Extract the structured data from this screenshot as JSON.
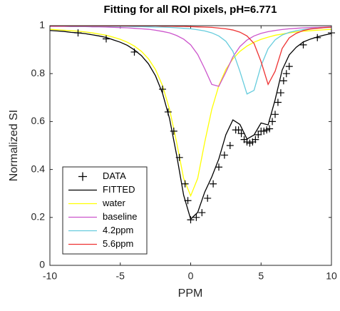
{
  "chart_data": {
    "type": "line",
    "title": "Fitting for all ROI pixels, pH=6.771",
    "xlabel": "PPM",
    "ylabel": "Normalized SI",
    "xlim": [
      -10,
      10
    ],
    "ylim": [
      0,
      1
    ],
    "xticks": [
      -10,
      -5,
      0,
      5,
      10
    ],
    "yticks": [
      0,
      0.2,
      0.4,
      0.6,
      0.8,
      1
    ],
    "legend_location": "southwest",
    "x": [
      -10,
      -9.5,
      -9,
      -8.5,
      -8,
      -7.5,
      -7,
      -6.5,
      -6,
      -5.5,
      -5,
      -4.5,
      -4,
      -3.5,
      -3,
      -2.5,
      -2,
      -1.5,
      -1,
      -0.5,
      0,
      0.5,
      1,
      1.5,
      2,
      2.5,
      3,
      3.5,
      4,
      4.5,
      5,
      5.5,
      6,
      6.5,
      7,
      7.5,
      8,
      8.5,
      9,
      9.5,
      10
    ],
    "series": [
      {
        "name": "DATA",
        "color": "#000000",
        "marker": "+",
        "line": false,
        "x": [
          -8,
          -6,
          -4,
          -2,
          -1.6,
          -1.2,
          -0.8,
          -0.4,
          -0.2,
          0,
          0.4,
          0.8,
          1.2,
          1.6,
          2,
          2.4,
          2.8,
          3.2,
          3.4,
          3.6,
          3.8,
          4,
          4.2,
          4.4,
          4.6,
          4.8,
          5,
          5.2,
          5.4,
          5.6,
          5.8,
          6,
          6.2,
          6.4,
          6.6,
          6.8,
          7,
          8,
          9,
          10
        ],
        "values": [
          0.97,
          0.945,
          0.89,
          0.735,
          0.64,
          0.56,
          0.45,
          0.34,
          0.27,
          0.19,
          0.2,
          0.22,
          0.28,
          0.34,
          0.41,
          0.46,
          0.5,
          0.565,
          0.565,
          0.55,
          0.525,
          0.515,
          0.51,
          0.515,
          0.525,
          0.545,
          0.56,
          0.56,
          0.565,
          0.57,
          0.6,
          0.63,
          0.68,
          0.72,
          0.77,
          0.8,
          0.83,
          0.92,
          0.95,
          0.97
        ]
      },
      {
        "name": "FITTED",
        "color": "#000000",
        "values": [
          0.98,
          0.978,
          0.976,
          0.972,
          0.97,
          0.967,
          0.962,
          0.957,
          0.951,
          0.941,
          0.931,
          0.918,
          0.899,
          0.875,
          0.841,
          0.791,
          0.718,
          0.612,
          0.461,
          0.293,
          0.193,
          0.221,
          0.306,
          0.369,
          0.444,
          0.545,
          0.607,
          0.588,
          0.527,
          0.544,
          0.594,
          0.586,
          0.691,
          0.815,
          0.878,
          0.91,
          0.932,
          0.944,
          0.953,
          0.961,
          0.967
        ]
      },
      {
        "name": "water",
        "color": "#ffff00",
        "values": [
          0.985,
          0.983,
          0.981,
          0.979,
          0.977,
          0.974,
          0.97,
          0.965,
          0.96,
          0.952,
          0.943,
          0.931,
          0.915,
          0.893,
          0.862,
          0.817,
          0.75,
          0.651,
          0.514,
          0.363,
          0.29,
          0.363,
          0.514,
          0.651,
          0.75,
          0.817,
          0.862,
          0.893,
          0.915,
          0.931,
          0.943,
          0.952,
          0.96,
          0.965,
          0.97,
          0.974,
          0.977,
          0.979,
          0.981,
          0.983,
          0.985
        ]
      },
      {
        "name": "baseline",
        "color": "#cc55cc",
        "values": [
          0.997,
          0.997,
          0.997,
          0.996,
          0.996,
          0.996,
          0.995,
          0.995,
          0.994,
          0.993,
          0.992,
          0.991,
          0.989,
          0.987,
          0.985,
          0.981,
          0.976,
          0.97,
          0.959,
          0.944,
          0.92,
          0.88,
          0.82,
          0.755,
          0.747,
          0.806,
          0.87,
          0.913,
          0.94,
          0.957,
          0.968,
          0.975,
          0.98,
          0.984,
          0.987,
          0.989,
          0.991,
          0.992,
          0.993,
          0.994,
          0.995
        ]
      },
      {
        "name": "4.2ppm",
        "color": "#66ccdd",
        "values": [
          0.999,
          0.999,
          0.999,
          0.998,
          0.998,
          0.998,
          0.998,
          0.998,
          0.998,
          0.997,
          0.997,
          0.997,
          0.996,
          0.996,
          0.995,
          0.994,
          0.994,
          0.993,
          0.991,
          0.989,
          0.987,
          0.983,
          0.978,
          0.97,
          0.957,
          0.935,
          0.893,
          0.809,
          0.715,
          0.73,
          0.833,
          0.904,
          0.941,
          0.961,
          0.972,
          0.979,
          0.984,
          0.987,
          0.99,
          0.992,
          0.993
        ]
      },
      {
        "name": "5.6ppm",
        "color": "#ee3333",
        "values": [
          0.999,
          0.999,
          0.999,
          0.999,
          0.999,
          0.999,
          0.999,
          0.999,
          0.999,
          0.999,
          0.999,
          0.999,
          0.999,
          0.999,
          0.999,
          0.999,
          0.998,
          0.998,
          0.997,
          0.997,
          0.996,
          0.995,
          0.994,
          0.993,
          0.99,
          0.987,
          0.982,
          0.973,
          0.957,
          0.926,
          0.85,
          0.755,
          0.81,
          0.905,
          0.949,
          0.968,
          0.98,
          0.986,
          0.989,
          0.992,
          0.994
        ]
      }
    ]
  }
}
